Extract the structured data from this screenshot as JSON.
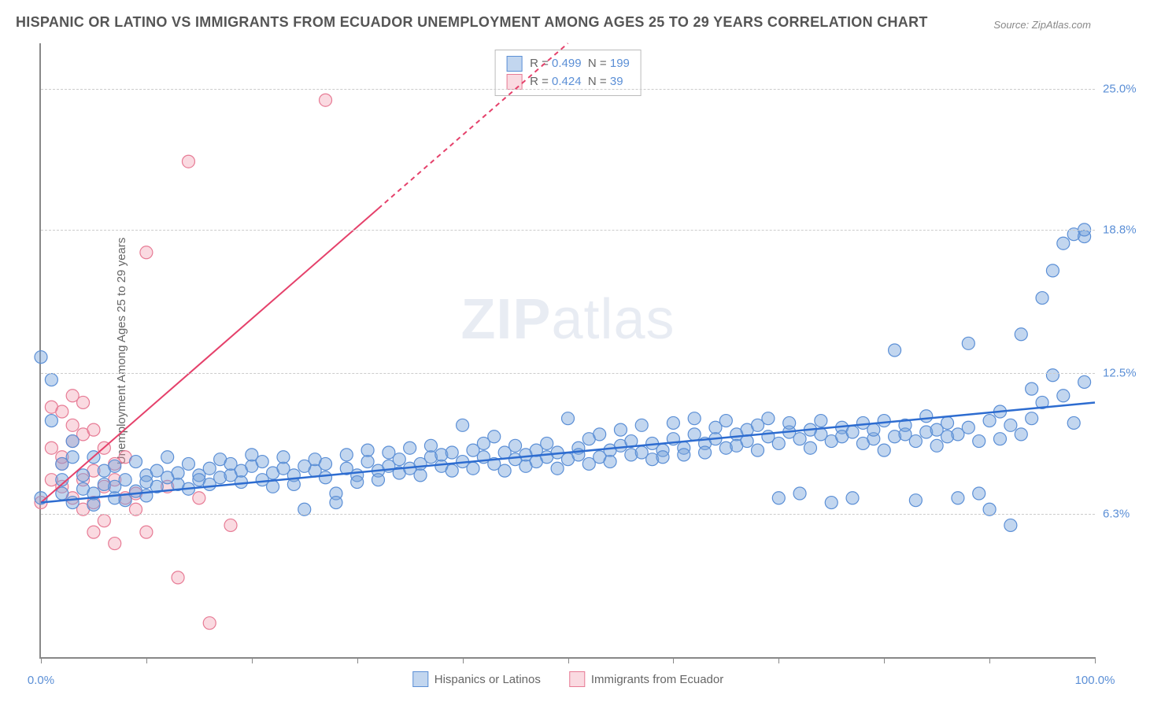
{
  "title": "HISPANIC OR LATINO VS IMMIGRANTS FROM ECUADOR UNEMPLOYMENT AMONG AGES 25 TO 29 YEARS CORRELATION CHART",
  "source_label": "Source:",
  "source_value": "ZipAtlas.com",
  "watermark_a": "ZIP",
  "watermark_b": "atlas",
  "y_axis_label": "Unemployment Among Ages 25 to 29 years",
  "chart": {
    "type": "scatter",
    "background_color": "#ffffff",
    "grid_color": "#cccccc",
    "axis_color": "#888888",
    "x_min": 0,
    "x_max": 100,
    "y_min": 0,
    "y_max": 27,
    "x_ticks": [
      0,
      10,
      20,
      30,
      40,
      50,
      60,
      70,
      80,
      90,
      100
    ],
    "x_tick_labels": {
      "0": "0.0%",
      "100": "100.0%"
    },
    "y_gridlines": [
      {
        "value": 6.3,
        "label": "6.3%"
      },
      {
        "value": 12.5,
        "label": "12.5%"
      },
      {
        "value": 18.8,
        "label": "18.8%"
      },
      {
        "value": 25.0,
        "label": "25.0%"
      }
    ],
    "series": [
      {
        "name": "Hispanics or Latinos",
        "marker_color_fill": "rgba(120,165,220,0.45)",
        "marker_color_stroke": "#5b8fd6",
        "marker_radius": 8,
        "trend_color": "#2d6cd0",
        "trend_width": 2.5,
        "trend_dash": "none",
        "trend": {
          "x1": 0,
          "y1": 6.8,
          "x2": 100,
          "y2": 11.2
        },
        "R": "0.499",
        "N": "199",
        "points": [
          [
            0,
            7.0
          ],
          [
            0,
            13.2
          ],
          [
            1,
            10.4
          ],
          [
            1,
            12.2
          ],
          [
            2,
            7.2
          ],
          [
            2,
            7.8
          ],
          [
            2,
            8.5
          ],
          [
            3,
            8.8
          ],
          [
            3,
            6.8
          ],
          [
            3,
            9.5
          ],
          [
            4,
            7.4
          ],
          [
            4,
            8.0
          ],
          [
            5,
            7.2
          ],
          [
            5,
            8.8
          ],
          [
            5,
            6.7
          ],
          [
            6,
            7.6
          ],
          [
            6,
            8.2
          ],
          [
            7,
            7.0
          ],
          [
            7,
            7.5
          ],
          [
            7,
            8.4
          ],
          [
            8,
            7.8
          ],
          [
            8,
            6.9
          ],
          [
            9,
            7.3
          ],
          [
            9,
            8.6
          ],
          [
            10,
            7.1
          ],
          [
            10,
            8.0
          ],
          [
            10,
            7.7
          ],
          [
            11,
            8.2
          ],
          [
            11,
            7.5
          ],
          [
            12,
            7.9
          ],
          [
            12,
            8.8
          ],
          [
            13,
            7.6
          ],
          [
            13,
            8.1
          ],
          [
            14,
            7.4
          ],
          [
            14,
            8.5
          ],
          [
            15,
            8.0
          ],
          [
            15,
            7.8
          ],
          [
            16,
            8.3
          ],
          [
            16,
            7.6
          ],
          [
            17,
            8.7
          ],
          [
            17,
            7.9
          ],
          [
            18,
            8.0
          ],
          [
            18,
            8.5
          ],
          [
            19,
            7.7
          ],
          [
            19,
            8.2
          ],
          [
            20,
            8.4
          ],
          [
            20,
            8.9
          ],
          [
            21,
            7.8
          ],
          [
            21,
            8.6
          ],
          [
            22,
            8.1
          ],
          [
            22,
            7.5
          ],
          [
            23,
            8.3
          ],
          [
            23,
            8.8
          ],
          [
            24,
            8.0
          ],
          [
            24,
            7.6
          ],
          [
            25,
            6.5
          ],
          [
            25,
            8.4
          ],
          [
            26,
            8.2
          ],
          [
            26,
            8.7
          ],
          [
            27,
            7.9
          ],
          [
            27,
            8.5
          ],
          [
            28,
            7.2
          ],
          [
            28,
            6.8
          ],
          [
            29,
            8.3
          ],
          [
            29,
            8.9
          ],
          [
            30,
            8.0
          ],
          [
            30,
            7.7
          ],
          [
            31,
            8.6
          ],
          [
            31,
            9.1
          ],
          [
            32,
            8.2
          ],
          [
            32,
            7.8
          ],
          [
            33,
            8.4
          ],
          [
            33,
            9.0
          ],
          [
            34,
            8.1
          ],
          [
            34,
            8.7
          ],
          [
            35,
            8.3
          ],
          [
            35,
            9.2
          ],
          [
            36,
            8.5
          ],
          [
            36,
            8.0
          ],
          [
            37,
            8.8
          ],
          [
            37,
            9.3
          ],
          [
            38,
            8.4
          ],
          [
            38,
            8.9
          ],
          [
            39,
            8.2
          ],
          [
            39,
            9.0
          ],
          [
            40,
            10.2
          ],
          [
            40,
            8.6
          ],
          [
            41,
            9.1
          ],
          [
            41,
            8.3
          ],
          [
            42,
            8.8
          ],
          [
            42,
            9.4
          ],
          [
            43,
            9.7
          ],
          [
            43,
            8.5
          ],
          [
            44,
            9.0
          ],
          [
            44,
            8.2
          ],
          [
            45,
            8.7
          ],
          [
            45,
            9.3
          ],
          [
            46,
            8.4
          ],
          [
            46,
            8.9
          ],
          [
            47,
            9.1
          ],
          [
            47,
            8.6
          ],
          [
            48,
            8.8
          ],
          [
            48,
            9.4
          ],
          [
            49,
            9.0
          ],
          [
            49,
            8.3
          ],
          [
            50,
            10.5
          ],
          [
            50,
            8.7
          ],
          [
            51,
            9.2
          ],
          [
            51,
            8.9
          ],
          [
            52,
            8.5
          ],
          [
            52,
            9.6
          ],
          [
            53,
            9.8
          ],
          [
            53,
            8.8
          ],
          [
            54,
            9.1
          ],
          [
            54,
            8.6
          ],
          [
            55,
            10.0
          ],
          [
            55,
            9.3
          ],
          [
            56,
            8.9
          ],
          [
            56,
            9.5
          ],
          [
            57,
            10.2
          ],
          [
            57,
            9.0
          ],
          [
            58,
            8.7
          ],
          [
            58,
            9.4
          ],
          [
            59,
            9.1
          ],
          [
            59,
            8.8
          ],
          [
            60,
            9.6
          ],
          [
            60,
            10.3
          ],
          [
            61,
            9.2
          ],
          [
            61,
            8.9
          ],
          [
            62,
            9.8
          ],
          [
            62,
            10.5
          ],
          [
            63,
            9.4
          ],
          [
            63,
            9.0
          ],
          [
            64,
            10.1
          ],
          [
            64,
            9.6
          ],
          [
            65,
            9.2
          ],
          [
            65,
            10.4
          ],
          [
            66,
            9.8
          ],
          [
            66,
            9.3
          ],
          [
            67,
            10.0
          ],
          [
            67,
            9.5
          ],
          [
            68,
            9.1
          ],
          [
            68,
            10.2
          ],
          [
            69,
            9.7
          ],
          [
            69,
            10.5
          ],
          [
            70,
            7.0
          ],
          [
            70,
            9.4
          ],
          [
            71,
            9.9
          ],
          [
            71,
            10.3
          ],
          [
            72,
            9.6
          ],
          [
            72,
            7.2
          ],
          [
            73,
            10.0
          ],
          [
            73,
            9.2
          ],
          [
            74,
            9.8
          ],
          [
            74,
            10.4
          ],
          [
            75,
            9.5
          ],
          [
            75,
            6.8
          ],
          [
            76,
            10.1
          ],
          [
            76,
            9.7
          ],
          [
            77,
            7.0
          ],
          [
            77,
            9.9
          ],
          [
            78,
            10.3
          ],
          [
            78,
            9.4
          ],
          [
            79,
            9.6
          ],
          [
            79,
            10.0
          ],
          [
            80,
            9.1
          ],
          [
            80,
            10.4
          ],
          [
            81,
            9.7
          ],
          [
            81,
            13.5
          ],
          [
            82,
            9.8
          ],
          [
            82,
            10.2
          ],
          [
            83,
            9.5
          ],
          [
            83,
            6.9
          ],
          [
            84,
            9.9
          ],
          [
            84,
            10.6
          ],
          [
            85,
            9.3
          ],
          [
            85,
            10.0
          ],
          [
            86,
            9.7
          ],
          [
            86,
            10.3
          ],
          [
            87,
            7.0
          ],
          [
            87,
            9.8
          ],
          [
            88,
            13.8
          ],
          [
            88,
            10.1
          ],
          [
            89,
            9.5
          ],
          [
            89,
            7.2
          ],
          [
            90,
            10.4
          ],
          [
            90,
            6.5
          ],
          [
            91,
            9.6
          ],
          [
            91,
            10.8
          ],
          [
            92,
            5.8
          ],
          [
            92,
            10.2
          ],
          [
            93,
            14.2
          ],
          [
            93,
            9.8
          ],
          [
            94,
            10.5
          ],
          [
            94,
            11.8
          ],
          [
            95,
            15.8
          ],
          [
            95,
            11.2
          ],
          [
            96,
            12.4
          ],
          [
            96,
            17.0
          ],
          [
            97,
            11.5
          ],
          [
            97,
            18.2
          ],
          [
            98,
            18.6
          ],
          [
            98,
            10.3
          ],
          [
            99,
            18.5
          ],
          [
            99,
            18.8
          ],
          [
            99,
            12.1
          ]
        ]
      },
      {
        "name": "Immigrants from Ecuador",
        "marker_color_fill": "rgba(240,150,170,0.35)",
        "marker_color_stroke": "#e77b95",
        "marker_radius": 8,
        "trend_color": "#e5416b",
        "trend_width": 2,
        "trend_dash": "6,5",
        "trend_solid_end_x": 32,
        "trend": {
          "x1": 0,
          "y1": 6.8,
          "x2": 50,
          "y2": 27.0
        },
        "R": "0.424",
        "N": "39",
        "points": [
          [
            0,
            6.8
          ],
          [
            1,
            7.8
          ],
          [
            1,
            9.2
          ],
          [
            1,
            11.0
          ],
          [
            2,
            8.5
          ],
          [
            2,
            10.8
          ],
          [
            2,
            8.8
          ],
          [
            2,
            7.5
          ],
          [
            3,
            9.5
          ],
          [
            3,
            11.5
          ],
          [
            3,
            10.2
          ],
          [
            3,
            7.0
          ],
          [
            4,
            6.5
          ],
          [
            4,
            9.8
          ],
          [
            4,
            11.2
          ],
          [
            4,
            7.8
          ],
          [
            5,
            10.0
          ],
          [
            5,
            8.2
          ],
          [
            5,
            6.8
          ],
          [
            5,
            5.5
          ],
          [
            6,
            7.5
          ],
          [
            6,
            9.2
          ],
          [
            6,
            6.0
          ],
          [
            7,
            7.8
          ],
          [
            7,
            8.5
          ],
          [
            7,
            5.0
          ],
          [
            8,
            7.0
          ],
          [
            8,
            8.8
          ],
          [
            9,
            6.5
          ],
          [
            9,
            7.2
          ],
          [
            10,
            17.8
          ],
          [
            10,
            5.5
          ],
          [
            12,
            7.5
          ],
          [
            13,
            3.5
          ],
          [
            14,
            21.8
          ],
          [
            15,
            7.0
          ],
          [
            16,
            1.5
          ],
          [
            18,
            5.8
          ],
          [
            27,
            24.5
          ]
        ]
      }
    ]
  },
  "legend_bottom": [
    {
      "label": "Hispanics or Latinos",
      "fill": "rgba(120,165,220,0.45)",
      "stroke": "#5b8fd6"
    },
    {
      "label": "Immigrants from Ecuador",
      "fill": "rgba(240,150,170,0.35)",
      "stroke": "#e77b95"
    }
  ]
}
